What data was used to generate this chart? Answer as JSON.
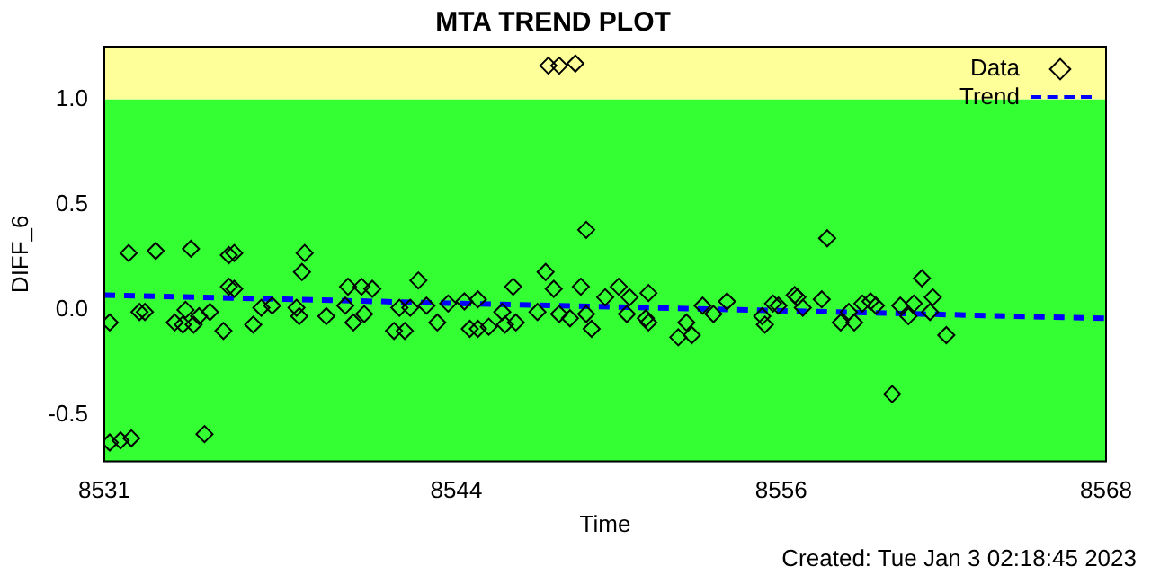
{
  "chart_data": {
    "type": "scatter",
    "title": "MTA TREND PLOT",
    "xlabel": "Time",
    "ylabel": "DIFF_6",
    "xlim": [
      8531,
      8568
    ],
    "xticks": [
      8531,
      8544,
      8556,
      8568
    ],
    "ylim": [
      -0.72,
      1.25
    ],
    "yticks": [
      {
        "value": -0.5,
        "label": "-0.5"
      },
      {
        "value": 0,
        "label": "0.0"
      },
      {
        "value": 0.5,
        "label": "0.5"
      },
      {
        "value": 1,
        "label": "1.0"
      }
    ],
    "bands": [
      {
        "axis": "y",
        "from": -0.72,
        "to": 1,
        "color": "#33ff33"
      },
      {
        "axis": "y",
        "from": 1,
        "to": 1.25,
        "color": "#ffff99"
      }
    ],
    "legend": "top right",
    "grid": false,
    "series": [
      {
        "name": "Data",
        "color": "#000000",
        "marker": "diamond",
        "x": [
          8531.2,
          8531.9,
          8532.3,
          8532.5,
          8532.9,
          8534.2,
          8534.0,
          8533.6,
          8533.9,
          8534.3,
          8534.5,
          8534.9,
          8535.4,
          8535.6,
          8535.8,
          8535.6,
          8535.8,
          8536.5,
          8536.8,
          8537.2,
          8538.1,
          8538.2,
          8538.4,
          8538.3,
          8539.2,
          8540.0,
          8540.5,
          8540.9,
          8539.9,
          8540.2,
          8540.6,
          8541.9,
          8542.3,
          8542.9,
          8541.7,
          8542.1,
          8542.6,
          8543.3,
          8543.7,
          8531.2,
          8531.6,
          8532.0,
          8534.7,
          8548.8,
          8546.1,
          8547.3,
          8547.6,
          8548.6,
          8550.0,
          8551.1,
          8544.3,
          8544.8,
          8544.5,
          8544.8,
          8545.2,
          8545.7,
          8545.8,
          8546.2,
          8547.0,
          8547.8,
          8548.2,
          8548.8,
          8549.0,
          8549.5,
          8550.4,
          8550.3,
          8551.0,
          8551.1,
          8552.2,
          8552.7,
          8552.5,
          8553.1,
          8553.5,
          8554.0,
          8555.3,
          8555.4,
          8555.7,
          8555.9,
          8556.5,
          8556.6,
          8556.8,
          8557.5,
          8557.7,
          8558.2,
          8558.7,
          8558.5,
          8559.0,
          8559.3,
          8559.5,
          8560.1,
          8560.4,
          8560.7,
          8560.9,
          8561.2,
          8561.6,
          8561.5,
          8562.1,
          8547.4,
          8547.8,
          8548.4
        ],
        "values": [
          -0.06,
          0.27,
          -0.01,
          -0.01,
          0.28,
          0.29,
          0.0,
          -0.06,
          -0.07,
          -0.07,
          -0.03,
          -0.01,
          -0.1,
          0.26,
          0.27,
          0.11,
          0.1,
          -0.07,
          0.01,
          0.02,
          0.01,
          -0.03,
          0.27,
          0.18,
          -0.03,
          0.11,
          0.11,
          0.1,
          0.02,
          -0.06,
          -0.02,
          0.01,
          0.01,
          0.02,
          -0.1,
          -0.1,
          0.14,
          -0.06,
          0.03,
          -0.63,
          -0.62,
          -0.61,
          -0.59,
          0.38,
          0.11,
          0.18,
          0.1,
          0.11,
          0.11,
          0.08,
          0.04,
          0.05,
          -0.09,
          -0.09,
          -0.08,
          -0.01,
          -0.07,
          -0.06,
          -0.01,
          -0.02,
          -0.04,
          -0.02,
          -0.09,
          0.06,
          0.06,
          -0.02,
          -0.04,
          -0.06,
          -0.13,
          -0.12,
          -0.06,
          0.02,
          -0.02,
          0.04,
          -0.03,
          -0.07,
          0.03,
          0.02,
          0.07,
          0.06,
          0.01,
          0.05,
          0.34,
          -0.06,
          -0.06,
          -0.01,
          0.03,
          0.04,
          0.02,
          -0.4,
          0.02,
          -0.03,
          0.03,
          0.15,
          0.06,
          -0.01,
          -0.12,
          1.16,
          1.16,
          1.17
        ]
      },
      {
        "name": "Trend",
        "type": "line",
        "color": "#0000ff",
        "marker": "none",
        "line_style": "dashed",
        "x": [
          8531,
          8568
        ],
        "values": [
          0.07,
          -0.04
        ]
      }
    ],
    "annotations": [
      "Created: Tue Jan  3 02:18:45 2023"
    ]
  }
}
